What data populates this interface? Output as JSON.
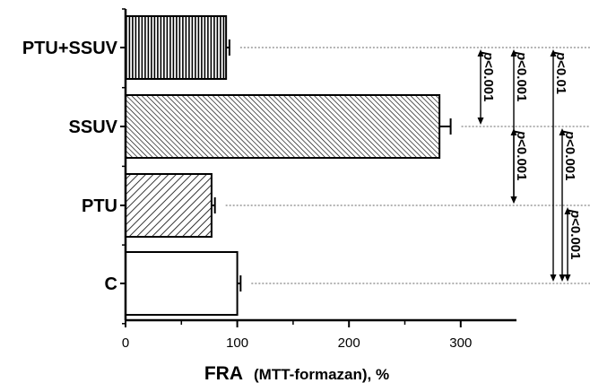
{
  "chart_data": {
    "type": "bar",
    "orientation": "horizontal",
    "categories": [
      "C",
      "PTU",
      "SSUV",
      "PTU+SSUV"
    ],
    "values": [
      100,
      77,
      281,
      90
    ],
    "errors": [
      3,
      3,
      10,
      3
    ],
    "patterns": [
      "none",
      "diag-sparse",
      "diag-dense",
      "vertical"
    ],
    "xlabel_main": "FRA",
    "xlabel_sub": "(MTT-formazan), %",
    "xlim": [
      0,
      350
    ],
    "xticks": [
      0,
      100,
      200,
      300
    ],
    "grid": false,
    "legend": "none",
    "significance": [
      {
        "from": "PTU+SSUV",
        "to": "SSUV",
        "label": "p<0.001"
      },
      {
        "from": "PTU+SSUV",
        "to": "PTU",
        "label": "p<0.001"
      },
      {
        "from": "PTU+SSUV",
        "to": "C",
        "label": "p<0.01"
      },
      {
        "from": "SSUV",
        "to": "PTU",
        "label": "p<0.001"
      },
      {
        "from": "SSUV",
        "to": "C",
        "label": "p<0.001"
      },
      {
        "from": "PTU",
        "to": "C",
        "label": "p<0.001"
      }
    ]
  }
}
